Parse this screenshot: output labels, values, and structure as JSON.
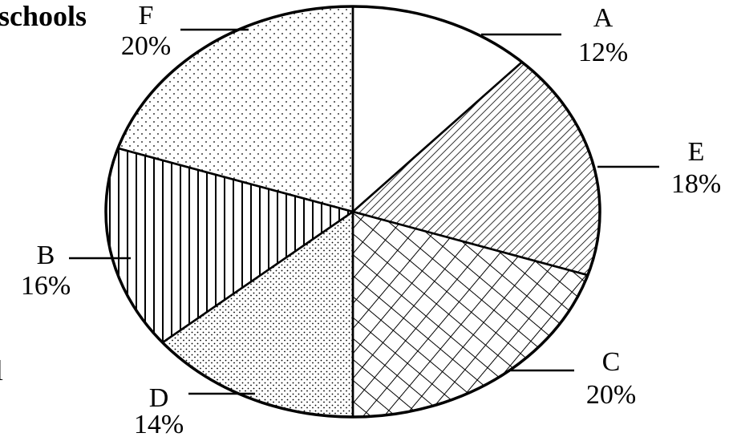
{
  "title_fragment": "schools",
  "edge_fragment": "l",
  "chart_data": {
    "type": "pie",
    "title": "",
    "start": "12 o'clock",
    "direction": "clockwise",
    "slices": [
      {
        "label": "A",
        "value": 12,
        "display": "12%",
        "fill": "blank"
      },
      {
        "label": "E",
        "value": 18,
        "display": "18%",
        "fill": "diagonal-hatch"
      },
      {
        "label": "C",
        "value": 20,
        "display": "20%",
        "fill": "cross-hatch"
      },
      {
        "label": "D",
        "value": 14,
        "display": "14%",
        "fill": "dense-dots"
      },
      {
        "label": "B",
        "value": 16,
        "display": "16%",
        "fill": "vertical-lines"
      },
      {
        "label": "F",
        "value": 20,
        "display": "20%",
        "fill": "sparse-dots"
      }
    ]
  }
}
